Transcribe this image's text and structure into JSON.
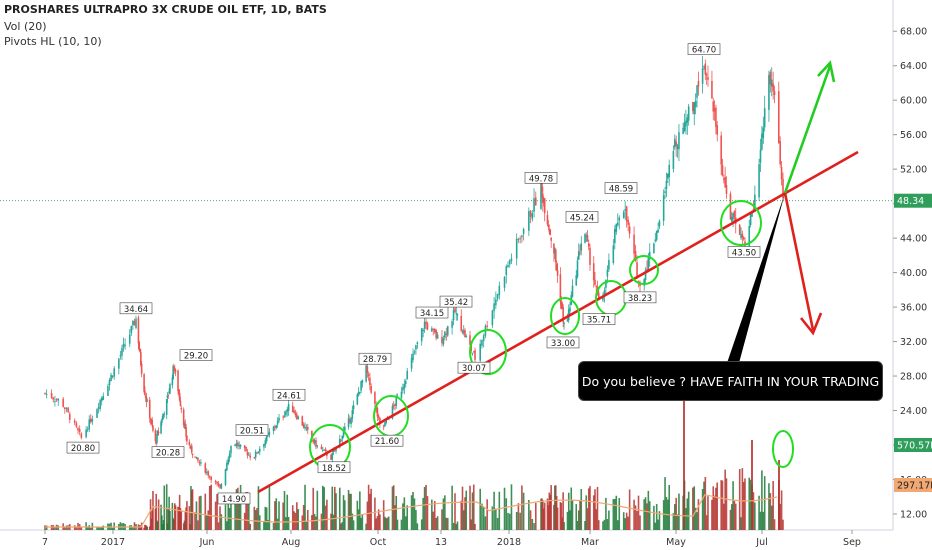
{
  "header": {
    "title": "PROSHARES ULTRAPRO 3X CRUDE OIL ETF, 1D, BATS",
    "indicator_vol": "Vol (20)",
    "indicator_pivots": "Pivots HL (10, 10)"
  },
  "callout": {
    "text": "Do you believe ?  HAVE FAITH IN YOUR TRADING"
  },
  "colors": {
    "up": "#26a69a",
    "down": "#ef5350",
    "trendline": "#e0201c",
    "arrow_up": "#22cc22",
    "arrow_down": "#e0201c",
    "circle": "#22dd22",
    "last_price_badge": "#2e9e5a",
    "vol_badge": "#2e9e5a",
    "vol_ma_badge": "#f1a873"
  },
  "chart_data": {
    "type": "candlestick",
    "ylim": [
      10,
      70
    ],
    "price_ticks": [
      "68.00",
      "64.00",
      "60.00",
      "56.00",
      "52.00",
      "48.00",
      "44.00",
      "40.00",
      "36.00",
      "32.00",
      "28.00",
      "24.00",
      "20.00",
      "16.00",
      "12.00"
    ],
    "date_ticks": [
      "7",
      "2017",
      "Jun",
      "Aug",
      "Oct",
      "13",
      "2018",
      "Mar",
      "May",
      "Jul",
      "Sep"
    ],
    "last_price": {
      "label": "48.34",
      "value": 48.34
    },
    "volume_badges": {
      "volume": "570.57K",
      "volume_ma": "297.17K"
    },
    "pivots": [
      {
        "label": "20.80",
        "type": "low",
        "value": 20.8
      },
      {
        "label": "34.64",
        "type": "high",
        "value": 34.64
      },
      {
        "label": "20.28",
        "type": "low",
        "value": 20.28
      },
      {
        "label": "29.20",
        "type": "high",
        "value": 29.2
      },
      {
        "label": "20.51",
        "type": "high",
        "value": 20.51
      },
      {
        "label": "14.90",
        "type": "low",
        "value": 14.9
      },
      {
        "label": "24.61",
        "type": "high",
        "value": 24.61
      },
      {
        "label": "18.52",
        "type": "low",
        "value": 18.52
      },
      {
        "label": "28.79",
        "type": "high",
        "value": 28.79
      },
      {
        "label": "21.60",
        "type": "low",
        "value": 21.6
      },
      {
        "label": "34.15",
        "type": "high",
        "value": 34.15
      },
      {
        "label": "35.42",
        "type": "high",
        "value": 35.42
      },
      {
        "label": "30.07",
        "type": "low",
        "value": 30.07
      },
      {
        "label": "49.78",
        "type": "high",
        "value": 49.78
      },
      {
        "label": "33.00",
        "type": "low",
        "value": 33.0
      },
      {
        "label": "45.24",
        "type": "high",
        "value": 45.24
      },
      {
        "label": "35.71",
        "type": "low",
        "value": 35.71
      },
      {
        "label": "48.59",
        "type": "high",
        "value": 48.59
      },
      {
        "label": "38.23",
        "type": "low",
        "value": 38.23
      },
      {
        "label": "64.70",
        "type": "high",
        "value": 64.7
      },
      {
        "label": "43.50",
        "type": "low",
        "value": 43.5
      }
    ],
    "price_path": [
      [
        "2017-01-05",
        26
      ],
      [
        "2017-01-15",
        25
      ],
      [
        "2017-01-27",
        20.8
      ],
      [
        "2017-02-05",
        24
      ],
      [
        "2017-02-20",
        30
      ],
      [
        "2017-03-03",
        34.64
      ],
      [
        "2017-03-12",
        27
      ],
      [
        "2017-03-27",
        20.28
      ],
      [
        "2017-04-10",
        25
      ],
      [
        "2017-04-19",
        29.2
      ],
      [
        "2017-05-05",
        20.5
      ],
      [
        "2017-05-20",
        17.5
      ],
      [
        "2017-06-01",
        14.9
      ],
      [
        "2017-06-10",
        20.51
      ],
      [
        "2017-06-25",
        18.5
      ],
      [
        "2017-07-10",
        22
      ],
      [
        "2017-07-22",
        24.61
      ],
      [
        "2017-08-10",
        20
      ],
      [
        "2017-08-21",
        18.52
      ],
      [
        "2017-09-05",
        23
      ],
      [
        "2017-09-18",
        28.79
      ],
      [
        "2017-09-30",
        21.6
      ],
      [
        "2017-10-15",
        26
      ],
      [
        "2017-11-01",
        34.15
      ],
      [
        "2017-11-12",
        32
      ],
      [
        "2017-11-22",
        35.42
      ],
      [
        "2017-12-08",
        30.07
      ],
      [
        "2017-12-25",
        40
      ],
      [
        "2018-01-15",
        49.78
      ],
      [
        "2018-01-30",
        42
      ],
      [
        "2018-02-10",
        33
      ],
      [
        "2018-02-25",
        45.24
      ],
      [
        "2018-03-10",
        35.71
      ],
      [
        "2018-03-25",
        48.59
      ],
      [
        "2018-04-06",
        38.23
      ],
      [
        "2018-04-20",
        46
      ],
      [
        "2018-05-01",
        55
      ],
      [
        "2018-05-15",
        60
      ],
      [
        "2018-05-22",
        64.7
      ],
      [
        "2018-06-01",
        56
      ],
      [
        "2018-06-10",
        47
      ],
      [
        "2018-06-22",
        43.5
      ],
      [
        "2018-07-01",
        50
      ],
      [
        "2018-07-08",
        63
      ],
      [
        "2018-07-14",
        60
      ],
      [
        "2018-07-19",
        48.34
      ]
    ]
  }
}
